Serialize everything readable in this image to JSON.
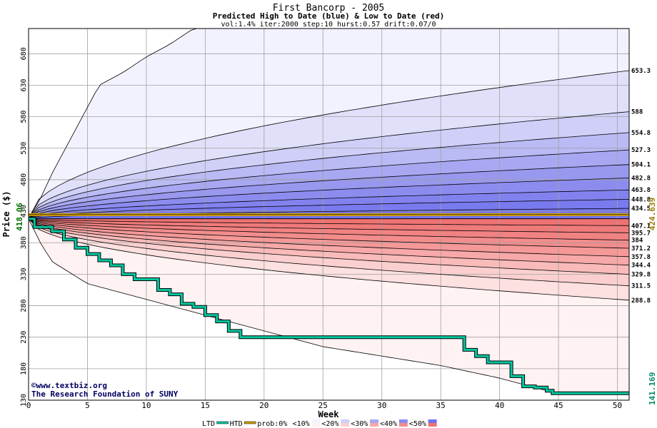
{
  "chart_data": {
    "type": "area",
    "title": "First Bancorp - 2005",
    "subtitle": "Predicted High to Date (blue) &  Low to Date (red)",
    "params": "vol:1.4% iter:2000 step:10 hurst:0.57 drift:0.07/0",
    "xlabel": "Week",
    "ylabel": "Price ($)",
    "xlim": [
      0,
      51
    ],
    "ylim": [
      130,
      720
    ],
    "x_ticks": [
      0,
      5,
      10,
      15,
      20,
      25,
      30,
      35,
      40,
      45,
      50
    ],
    "y_ticks": [
      130,
      180,
      230,
      280,
      330,
      380,
      430,
      480,
      530,
      580,
      630,
      680
    ],
    "start_price": 418.06,
    "start_label": "418.06",
    "current_line": 424.639,
    "current_label": "424.639",
    "last_low": 141.169,
    "last_low_label": "141.169",
    "high_percentiles": [
      {
        "label": "653.3",
        "end": 653.3
      },
      {
        "label": "588",
        "end": 588
      },
      {
        "label": "554.8",
        "end": 554.8
      },
      {
        "label": "527.3",
        "end": 527.3
      },
      {
        "label": "504.1",
        "end": 504.1
      },
      {
        "label": "482.8",
        "end": 482.8
      },
      {
        "label": "463.8",
        "end": 463.8
      },
      {
        "label": "448.8",
        "end": 448.8
      },
      {
        "label": "434.5",
        "end": 434.5
      }
    ],
    "low_percentiles": [
      {
        "label": "407.1",
        "end": 407.1
      },
      {
        "label": "395.7",
        "end": 395.7
      },
      {
        "label": "384",
        "end": 384
      },
      {
        "label": "371.2",
        "end": 371.2
      },
      {
        "label": "357.8",
        "end": 357.8
      },
      {
        "label": "344.4",
        "end": 344.4
      },
      {
        "label": "329.8",
        "end": 329.8
      },
      {
        "label": "311.5",
        "end": 311.5
      },
      {
        "label": "288.8",
        "end": 288.8
      }
    ],
    "max_envelope": [
      [
        0,
        418
      ],
      [
        1,
        450
      ],
      [
        2,
        490
      ],
      [
        4,
        560
      ],
      [
        6,
        630
      ],
      [
        8,
        650
      ],
      [
        10,
        675
      ],
      [
        12,
        695
      ],
      [
        14,
        720
      ]
    ],
    "min_envelope": [
      [
        0,
        418
      ],
      [
        1,
        380
      ],
      [
        2,
        350
      ],
      [
        5,
        315
      ],
      [
        10,
        290
      ],
      [
        15,
        265
      ],
      [
        20,
        240
      ],
      [
        25,
        215
      ],
      [
        30,
        200
      ],
      [
        35,
        185
      ],
      [
        40,
        165
      ],
      [
        45,
        140
      ],
      [
        51,
        140
      ]
    ],
    "actual_low": [
      [
        0,
        418
      ],
      [
        0.5,
        405
      ],
      [
        1,
        405
      ],
      [
        2,
        398
      ],
      [
        3,
        385
      ],
      [
        4,
        372
      ],
      [
        5,
        362
      ],
      [
        6,
        352
      ],
      [
        7,
        344
      ],
      [
        8,
        330
      ],
      [
        9,
        322
      ],
      [
        10,
        322
      ],
      [
        11,
        305
      ],
      [
        12,
        298
      ],
      [
        13,
        283
      ],
      [
        14,
        278
      ],
      [
        15,
        265
      ],
      [
        16,
        255
      ],
      [
        17,
        240
      ],
      [
        18,
        230
      ],
      [
        33,
        230
      ],
      [
        36,
        230
      ],
      [
        37,
        210
      ],
      [
        38,
        200
      ],
      [
        39,
        190
      ],
      [
        40,
        190
      ],
      [
        41,
        168
      ],
      [
        42,
        152
      ],
      [
        43,
        150
      ],
      [
        44,
        145
      ],
      [
        44.5,
        141
      ],
      [
        51,
        141
      ]
    ],
    "colors": {
      "high_bands": [
        "#f2f2ff",
        "#e0e0fb",
        "#cfcff8",
        "#babaf5",
        "#a8a8f2",
        "#9898ef",
        "#8c8cef",
        "#8282ef",
        "#7a7aef",
        "#7272ef"
      ],
      "low_bands": [
        "#fff2f2",
        "#fde0e0",
        "#fbcfcf",
        "#f9baba",
        "#f7a8a8",
        "#f59898",
        "#f38c8c",
        "#f18282",
        "#ef7a7a",
        "#ef7272"
      ],
      "current_line": "#d4a000",
      "actual_low": "#00c8a0",
      "left_price": "#006f00",
      "current_label": "#9a7a00",
      "last_low_label": "#008a6a"
    },
    "credit": [
      "©www.textbiz.org",
      "The Research Foundation of SUNY"
    ],
    "legend": [
      "LTD",
      "HTD",
      "prob:0%",
      "<10%",
      "<20%",
      "<30%",
      "<40%",
      "<50%"
    ]
  }
}
